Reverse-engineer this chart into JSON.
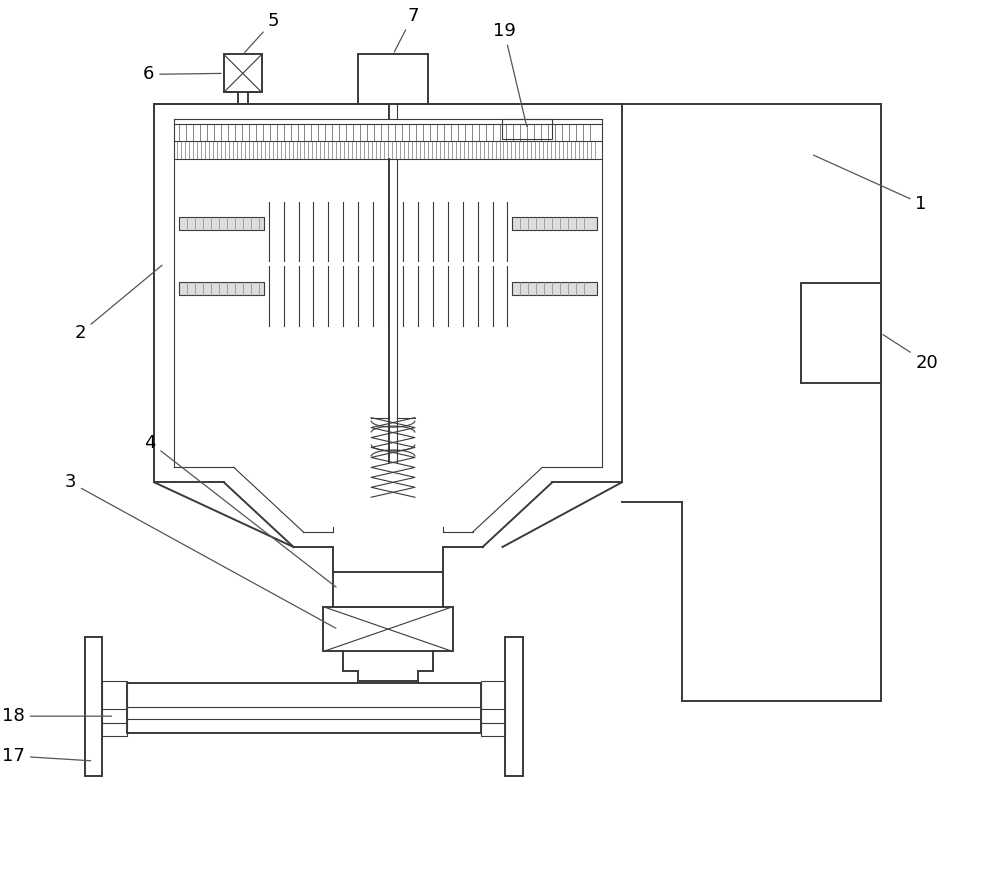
{
  "bg_color": "#ffffff",
  "line_color": "#3a3a3a",
  "lw": 1.4,
  "lw_thin": 0.8,
  "lw_med": 1.1,
  "fig_width": 10.0,
  "fig_height": 8.82
}
